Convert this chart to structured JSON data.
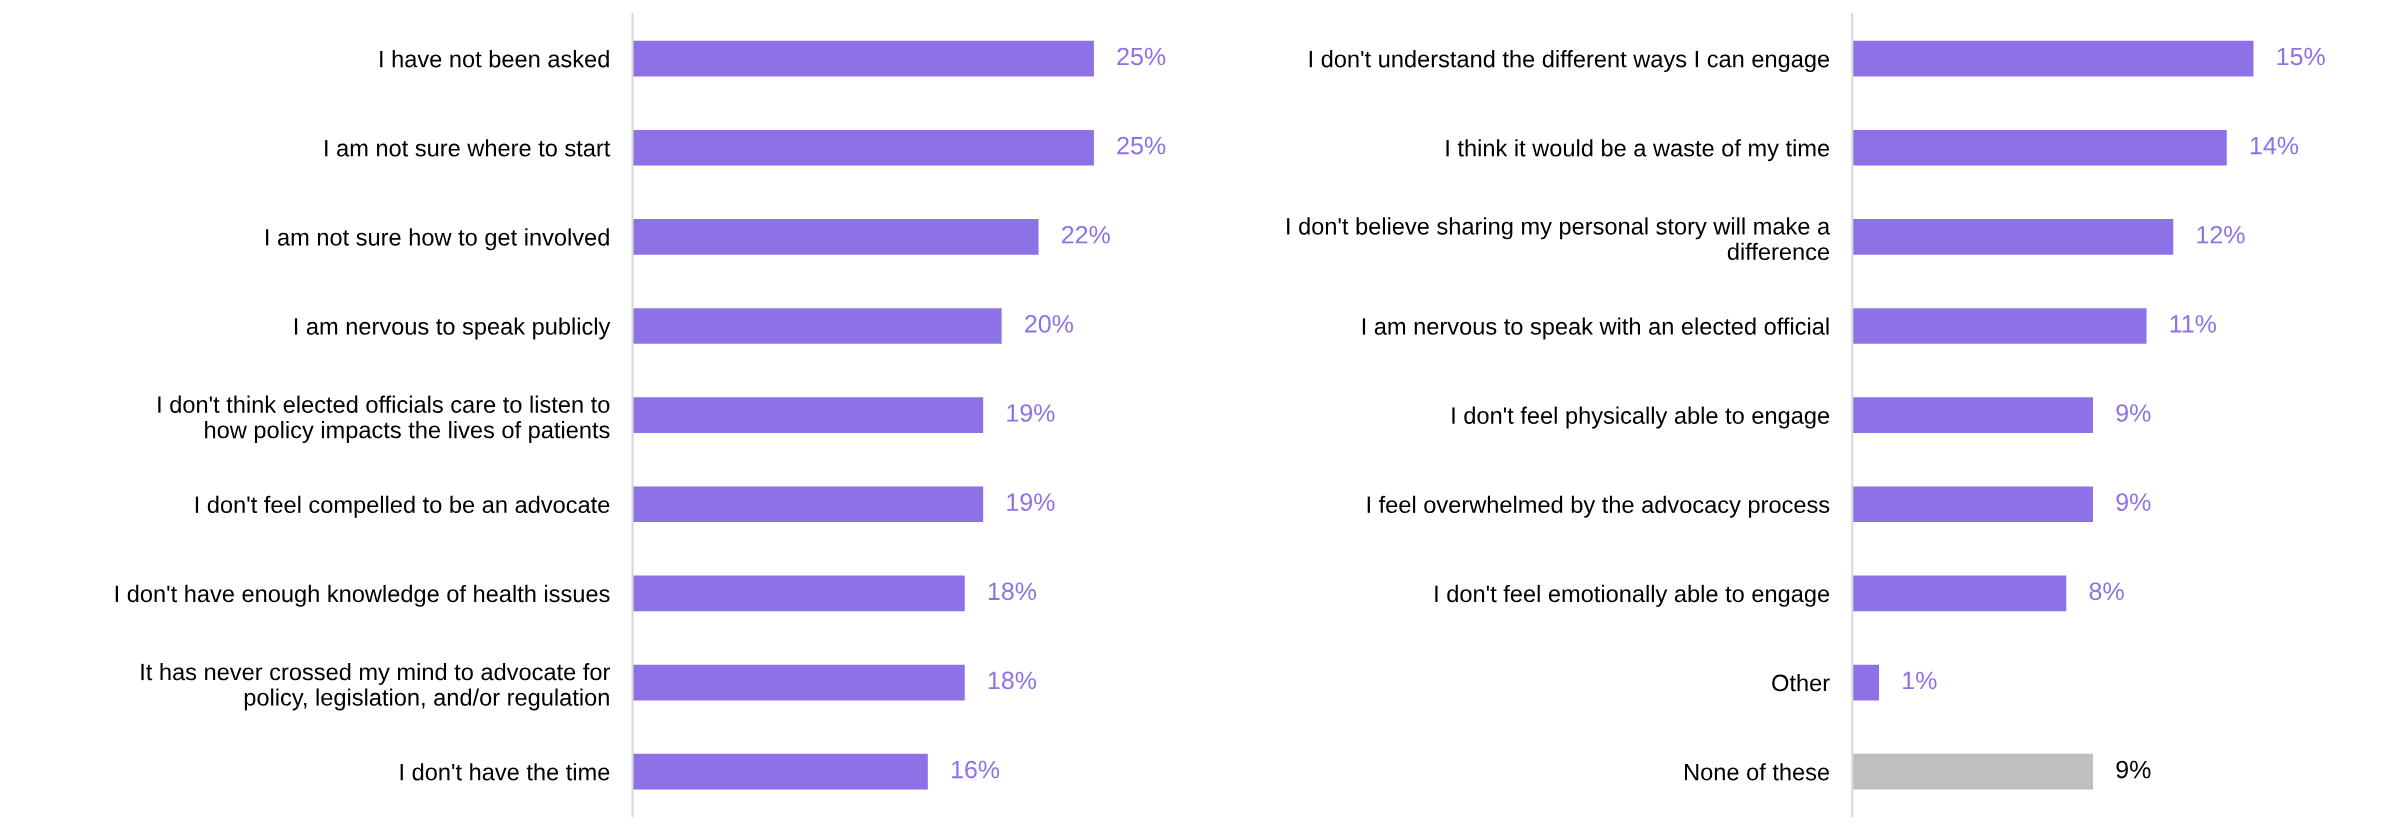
{
  "chart_data": [
    {
      "type": "bar",
      "orientation": "horizontal",
      "categories": [
        "I have not been asked",
        "I am not sure where to start",
        "I am not sure how to get involved",
        "I am nervous to speak publicly",
        "I don't think elected officials care to listen to\nhow policy impacts the lives of patients",
        "I don't feel compelled to be an advocate",
        "I don't have enough knowledge of health issues",
        "It has never crossed my mind to advocate for\npolicy, legislation, and/or regulation",
        "I don't have the time"
      ],
      "values": [
        25,
        25,
        22,
        20,
        19,
        19,
        18,
        18,
        16
      ],
      "colors": [
        "#8c72e6",
        "#8c72e6",
        "#8c72e6",
        "#8c72e6",
        "#8c72e6",
        "#8c72e6",
        "#8c72e6",
        "#8c72e6",
        "#8c72e6"
      ],
      "value_labels": [
        "25%",
        "25%",
        "22%",
        "20%",
        "19%",
        "19%",
        "18%",
        "18%",
        "16%"
      ],
      "grid": false,
      "legend": false
    },
    {
      "type": "bar",
      "orientation": "horizontal",
      "categories": [
        "I don't understand the different ways I can engage",
        "I think it would be a waste of my time",
        "I don't believe sharing my personal story will make a\ndifference",
        "I am nervous to speak with an elected official",
        "I don't feel physically able to engage",
        "I feel overwhelmed by the advocacy process",
        "I don't feel emotionally able to engage",
        "Other",
        "None of these"
      ],
      "values": [
        15,
        14,
        12,
        11,
        9,
        9,
        8,
        1,
        9
      ],
      "colors": [
        "#8c72e6",
        "#8c72e6",
        "#8c72e6",
        "#8c72e6",
        "#8c72e6",
        "#8c72e6",
        "#8c72e6",
        "#8c72e6",
        "#bfbfbf"
      ],
      "value_labels": [
        "15%",
        "14%",
        "12%",
        "11%",
        "9%",
        "9%",
        "8%",
        "1%",
        "9%"
      ],
      "grid": false,
      "legend": false
    }
  ]
}
